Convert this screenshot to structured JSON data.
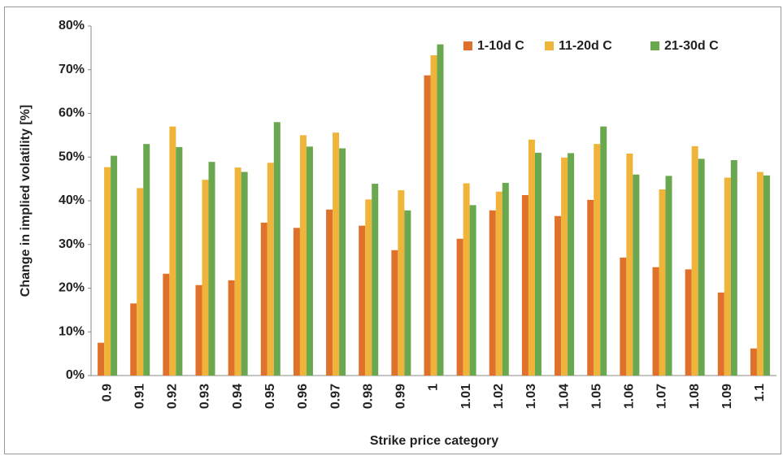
{
  "chart_data": {
    "type": "bar",
    "x_label": "Strike price category",
    "y_label": "Change in implied volatility [%]",
    "categories": [
      "0.9",
      "0.91",
      "0.92",
      "0.93",
      "0.94",
      "0.95",
      "0.96",
      "0.97",
      "0.98",
      "0.99",
      "1",
      "1.01",
      "1.02",
      "1.03",
      "1.04",
      "1.05",
      "1.06",
      "1.07",
      "1.08",
      "1.09",
      "1.1"
    ],
    "series": [
      {
        "name": "1-10d C",
        "color": "#e0712b",
        "values": [
          7.5,
          16.5,
          23.3,
          20.7,
          21.8,
          35,
          33.8,
          38,
          34.3,
          28.7,
          68.7,
          31.3,
          37.8,
          41.3,
          36.5,
          40.2,
          27,
          24.8,
          24.3,
          19,
          6.2
        ]
      },
      {
        "name": "11-20d C",
        "color": "#f0b43a",
        "values": [
          47.7,
          42.9,
          57,
          44.8,
          47.6,
          48.7,
          55,
          55.6,
          40.3,
          42.4,
          73.3,
          44,
          42.1,
          54,
          49.9,
          53,
          50.8,
          42.6,
          52.5,
          45.3,
          46.6
        ]
      },
      {
        "name": "21-30d C",
        "color": "#6aa84f",
        "values": [
          50.3,
          53,
          52.3,
          48.9,
          46.6,
          58,
          52.4,
          52,
          43.9,
          37.8,
          75.8,
          39,
          44.1,
          51,
          50.9,
          57,
          46,
          45.7,
          49.6,
          49.3,
          45.8
        ]
      }
    ],
    "ylim": [
      0,
      80
    ],
    "yticks": [
      {
        "value": 0,
        "label": "0%"
      },
      {
        "value": 10,
        "label": "10%"
      },
      {
        "value": 20,
        "label": "20%"
      },
      {
        "value": 30,
        "label": "30%"
      },
      {
        "value": 40,
        "label": "40%"
      },
      {
        "value": 50,
        "label": "50%"
      },
      {
        "value": 60,
        "label": "60%"
      },
      {
        "value": 70,
        "label": "70%"
      },
      {
        "value": 80,
        "label": "80%"
      }
    ],
    "grid": false,
    "legend": "top-right"
  }
}
